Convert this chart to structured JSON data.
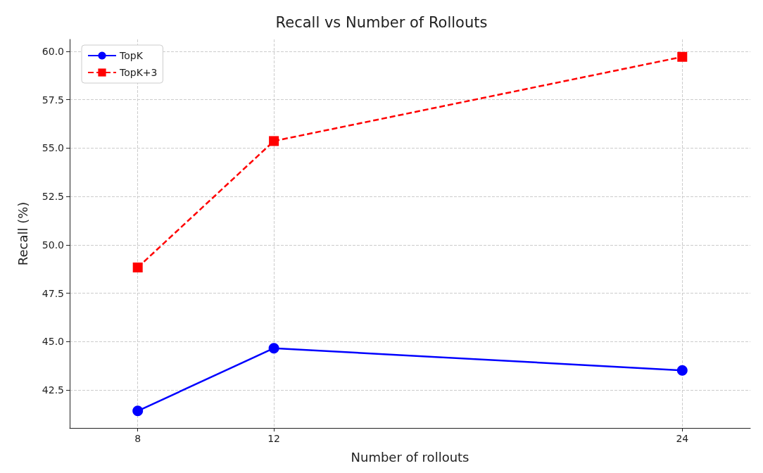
{
  "chart_data": {
    "type": "line",
    "title": "Recall vs Number of Rollouts",
    "xlabel": "Number of rollouts",
    "ylabel": "Recall (%)",
    "x": [
      8,
      12,
      24
    ],
    "series": [
      {
        "name": "TopK",
        "color": "#0000ff",
        "values": [
          41.42,
          44.66,
          43.51
        ],
        "marker": "circle",
        "line_style": "solid"
      },
      {
        "name": "TopK+3",
        "color": "#ff0000",
        "values": [
          48.83,
          55.36,
          59.71
        ],
        "marker": "square",
        "line_style": "dashed"
      }
    ],
    "xlim": [
      6,
      26
    ],
    "xticks": [
      8,
      12,
      24
    ],
    "ylim": [
      40.54,
      60.61
    ],
    "yticks": [
      {
        "value": 42.5,
        "label": "42.5"
      },
      {
        "value": 45,
        "label": "45.0"
      },
      {
        "value": 47.5,
        "label": "47.5"
      },
      {
        "value": 50,
        "label": "50.0"
      },
      {
        "value": 52.5,
        "label": "52.5"
      },
      {
        "value": 55,
        "label": "55.0"
      },
      {
        "value": 57.5,
        "label": "57.5"
      },
      {
        "value": 60,
        "label": "60.0"
      }
    ],
    "grid": true,
    "legend": "top left"
  }
}
